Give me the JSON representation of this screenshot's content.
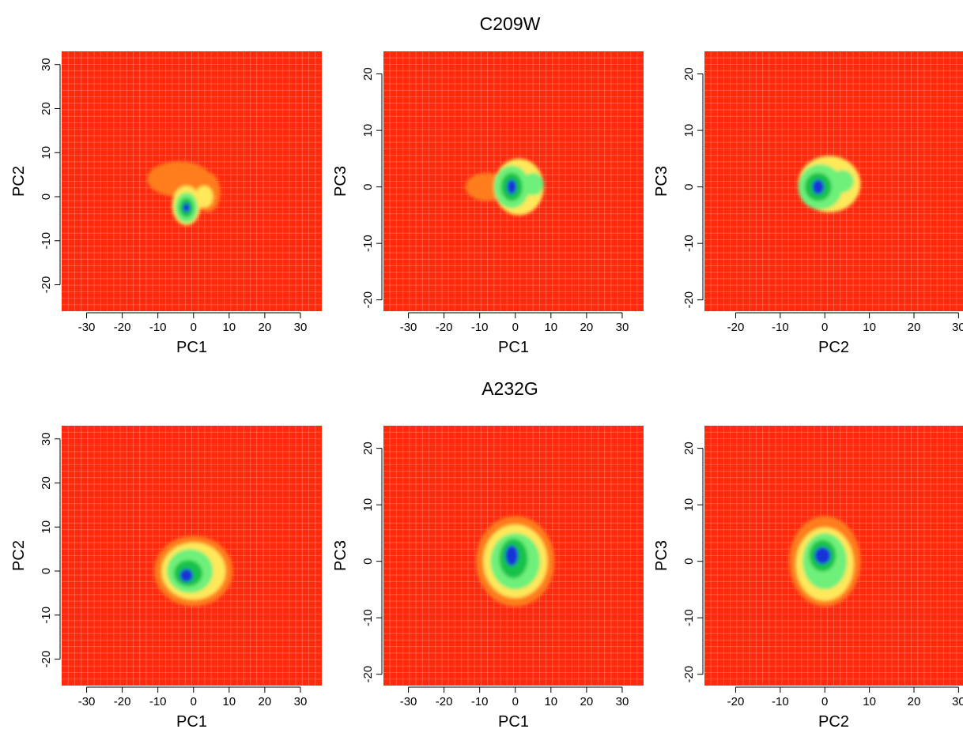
{
  "colors": {
    "background": "#ff2a0c",
    "level_1": "#ff7d1c",
    "level_2": "#ffe85a",
    "level_3": "#6ef07a",
    "level_4": "#12c24a",
    "core": "#1733d8"
  },
  "chart_data": [
    {
      "type": "heatmap",
      "group_title": "C209W",
      "xlabel": "PC1",
      "ylabel": "PC2",
      "xlim": [
        -37,
        36
      ],
      "ylim": [
        -26,
        33
      ],
      "xticks": [
        -30,
        -20,
        -10,
        0,
        10,
        20,
        30
      ],
      "yticks": [
        -20,
        -10,
        0,
        10,
        20,
        30
      ],
      "grid": true,
      "clusters": [
        {
          "x": -4,
          "y": 4,
          "sx": 9,
          "sy": 4,
          "level": 1
        },
        {
          "x": 4,
          "y": 1,
          "sx": 3.5,
          "sy": 4.5,
          "level": 1
        },
        {
          "x": 3,
          "y": 0,
          "sx": 2.5,
          "sy": 2.5,
          "level": 2
        },
        {
          "x": -2,
          "y": -2,
          "sx": 4,
          "sy": 4.5,
          "level": 2
        },
        {
          "x": -2,
          "y": -2.5,
          "sx": 3.2,
          "sy": 3.5,
          "level": 3
        },
        {
          "x": -2,
          "y": -2.5,
          "sx": 2,
          "sy": 2.2,
          "level": 4
        },
        {
          "x": -2,
          "y": -2.5,
          "sx": 1,
          "sy": 1,
          "level": 5
        }
      ]
    },
    {
      "type": "heatmap",
      "group_title": "C209W",
      "xlabel": "PC1",
      "ylabel": "PC3",
      "xlim": [
        -37,
        36
      ],
      "ylim": [
        -22,
        24
      ],
      "xticks": [
        -30,
        -20,
        -10,
        0,
        10,
        20,
        30
      ],
      "yticks": [
        -20,
        -10,
        0,
        10,
        20
      ],
      "grid": true,
      "clusters": [
        {
          "x": -8,
          "y": 0,
          "sx": 6,
          "sy": 2.5,
          "level": 1
        },
        {
          "x": 1,
          "y": 0,
          "sx": 7,
          "sy": 5,
          "level": 2
        },
        {
          "x": -1,
          "y": 0,
          "sx": 5,
          "sy": 3.8,
          "level": 3
        },
        {
          "x": 5,
          "y": 0.5,
          "sx": 3,
          "sy": 2,
          "level": 3
        },
        {
          "x": -1,
          "y": 0,
          "sx": 3,
          "sy": 2.5,
          "level": 4
        },
        {
          "x": -1,
          "y": 0,
          "sx": 1.3,
          "sy": 1.3,
          "level": 5
        }
      ]
    },
    {
      "type": "heatmap",
      "group_title": "C209W",
      "xlabel": "PC2",
      "ylabel": "PC3",
      "xlim": [
        -27,
        31
      ],
      "ylim": [
        -22,
        24
      ],
      "xticks": [
        -20,
        -10,
        0,
        10,
        20,
        30
      ],
      "yticks": [
        -20,
        -10,
        0,
        10,
        20
      ],
      "grid": true,
      "clusters": [
        {
          "x": 1,
          "y": 0.5,
          "sx": 7,
          "sy": 5,
          "level": 2
        },
        {
          "x": -1,
          "y": 0,
          "sx": 5,
          "sy": 4,
          "level": 3
        },
        {
          "x": 4,
          "y": 1,
          "sx": 2.5,
          "sy": 2,
          "level": 3
        },
        {
          "x": -1.5,
          "y": 0,
          "sx": 3,
          "sy": 2.5,
          "level": 4
        },
        {
          "x": -1.5,
          "y": 0,
          "sx": 1.3,
          "sy": 1.3,
          "level": 5
        }
      ]
    },
    {
      "type": "heatmap",
      "group_title": "A232G",
      "xlabel": "PC1",
      "ylabel": "PC2",
      "xlim": [
        -37,
        36
      ],
      "ylim": [
        -26,
        33
      ],
      "xticks": [
        -30,
        -20,
        -10,
        0,
        10,
        20,
        30
      ],
      "yticks": [
        -20,
        -10,
        0,
        10,
        20,
        30
      ],
      "grid": true,
      "clusters": [
        {
          "x": 0,
          "y": 0,
          "sx": 11,
          "sy": 8,
          "level": 1
        },
        {
          "x": 0,
          "y": 0,
          "sx": 9,
          "sy": 6.5,
          "level": 2
        },
        {
          "x": -1,
          "y": 0,
          "sx": 6.5,
          "sy": 5,
          "level": 3
        },
        {
          "x": -1.5,
          "y": -0.5,
          "sx": 4,
          "sy": 3,
          "level": 4
        },
        {
          "x": -2,
          "y": -1,
          "sx": 1.8,
          "sy": 1.5,
          "level": 5
        }
      ]
    },
    {
      "type": "heatmap",
      "group_title": "A232G",
      "xlabel": "PC1",
      "ylabel": "PC3",
      "xlim": [
        -37,
        36
      ],
      "ylim": [
        -22,
        24
      ],
      "xticks": [
        -30,
        -20,
        -10,
        0,
        10,
        20,
        30
      ],
      "yticks": [
        -20,
        -10,
        0,
        10,
        20
      ],
      "grid": true,
      "clusters": [
        {
          "x": 0,
          "y": 0,
          "sx": 11,
          "sy": 8,
          "level": 1
        },
        {
          "x": 0,
          "y": 0,
          "sx": 9,
          "sy": 6.5,
          "level": 2
        },
        {
          "x": 0,
          "y": 0,
          "sx": 7,
          "sy": 5,
          "level": 3
        },
        {
          "x": -0.5,
          "y": 0.5,
          "sx": 4,
          "sy": 3.5,
          "level": 4
        },
        {
          "x": -1,
          "y": 1,
          "sx": 1.8,
          "sy": 1.8,
          "level": 5
        }
      ]
    },
    {
      "type": "heatmap",
      "group_title": "A232G",
      "xlabel": "PC2",
      "ylabel": "PC3",
      "xlim": [
        -27,
        31
      ],
      "ylim": [
        -22,
        24
      ],
      "xticks": [
        -20,
        -10,
        0,
        10,
        20,
        30
      ],
      "yticks": [
        -20,
        -10,
        0,
        10,
        20
      ],
      "grid": true,
      "clusters": [
        {
          "x": 0,
          "y": 0,
          "sx": 8,
          "sy": 8,
          "level": 1
        },
        {
          "x": 0,
          "y": -0.5,
          "sx": 6.5,
          "sy": 6.5,
          "level": 2
        },
        {
          "x": 0,
          "y": 0,
          "sx": 5,
          "sy": 5,
          "level": 3
        },
        {
          "x": -0.5,
          "y": 1,
          "sx": 3,
          "sy": 2.8,
          "level": 4
        },
        {
          "x": -0.5,
          "y": 1,
          "sx": 1.8,
          "sy": 1.5,
          "level": 5
        }
      ]
    }
  ]
}
